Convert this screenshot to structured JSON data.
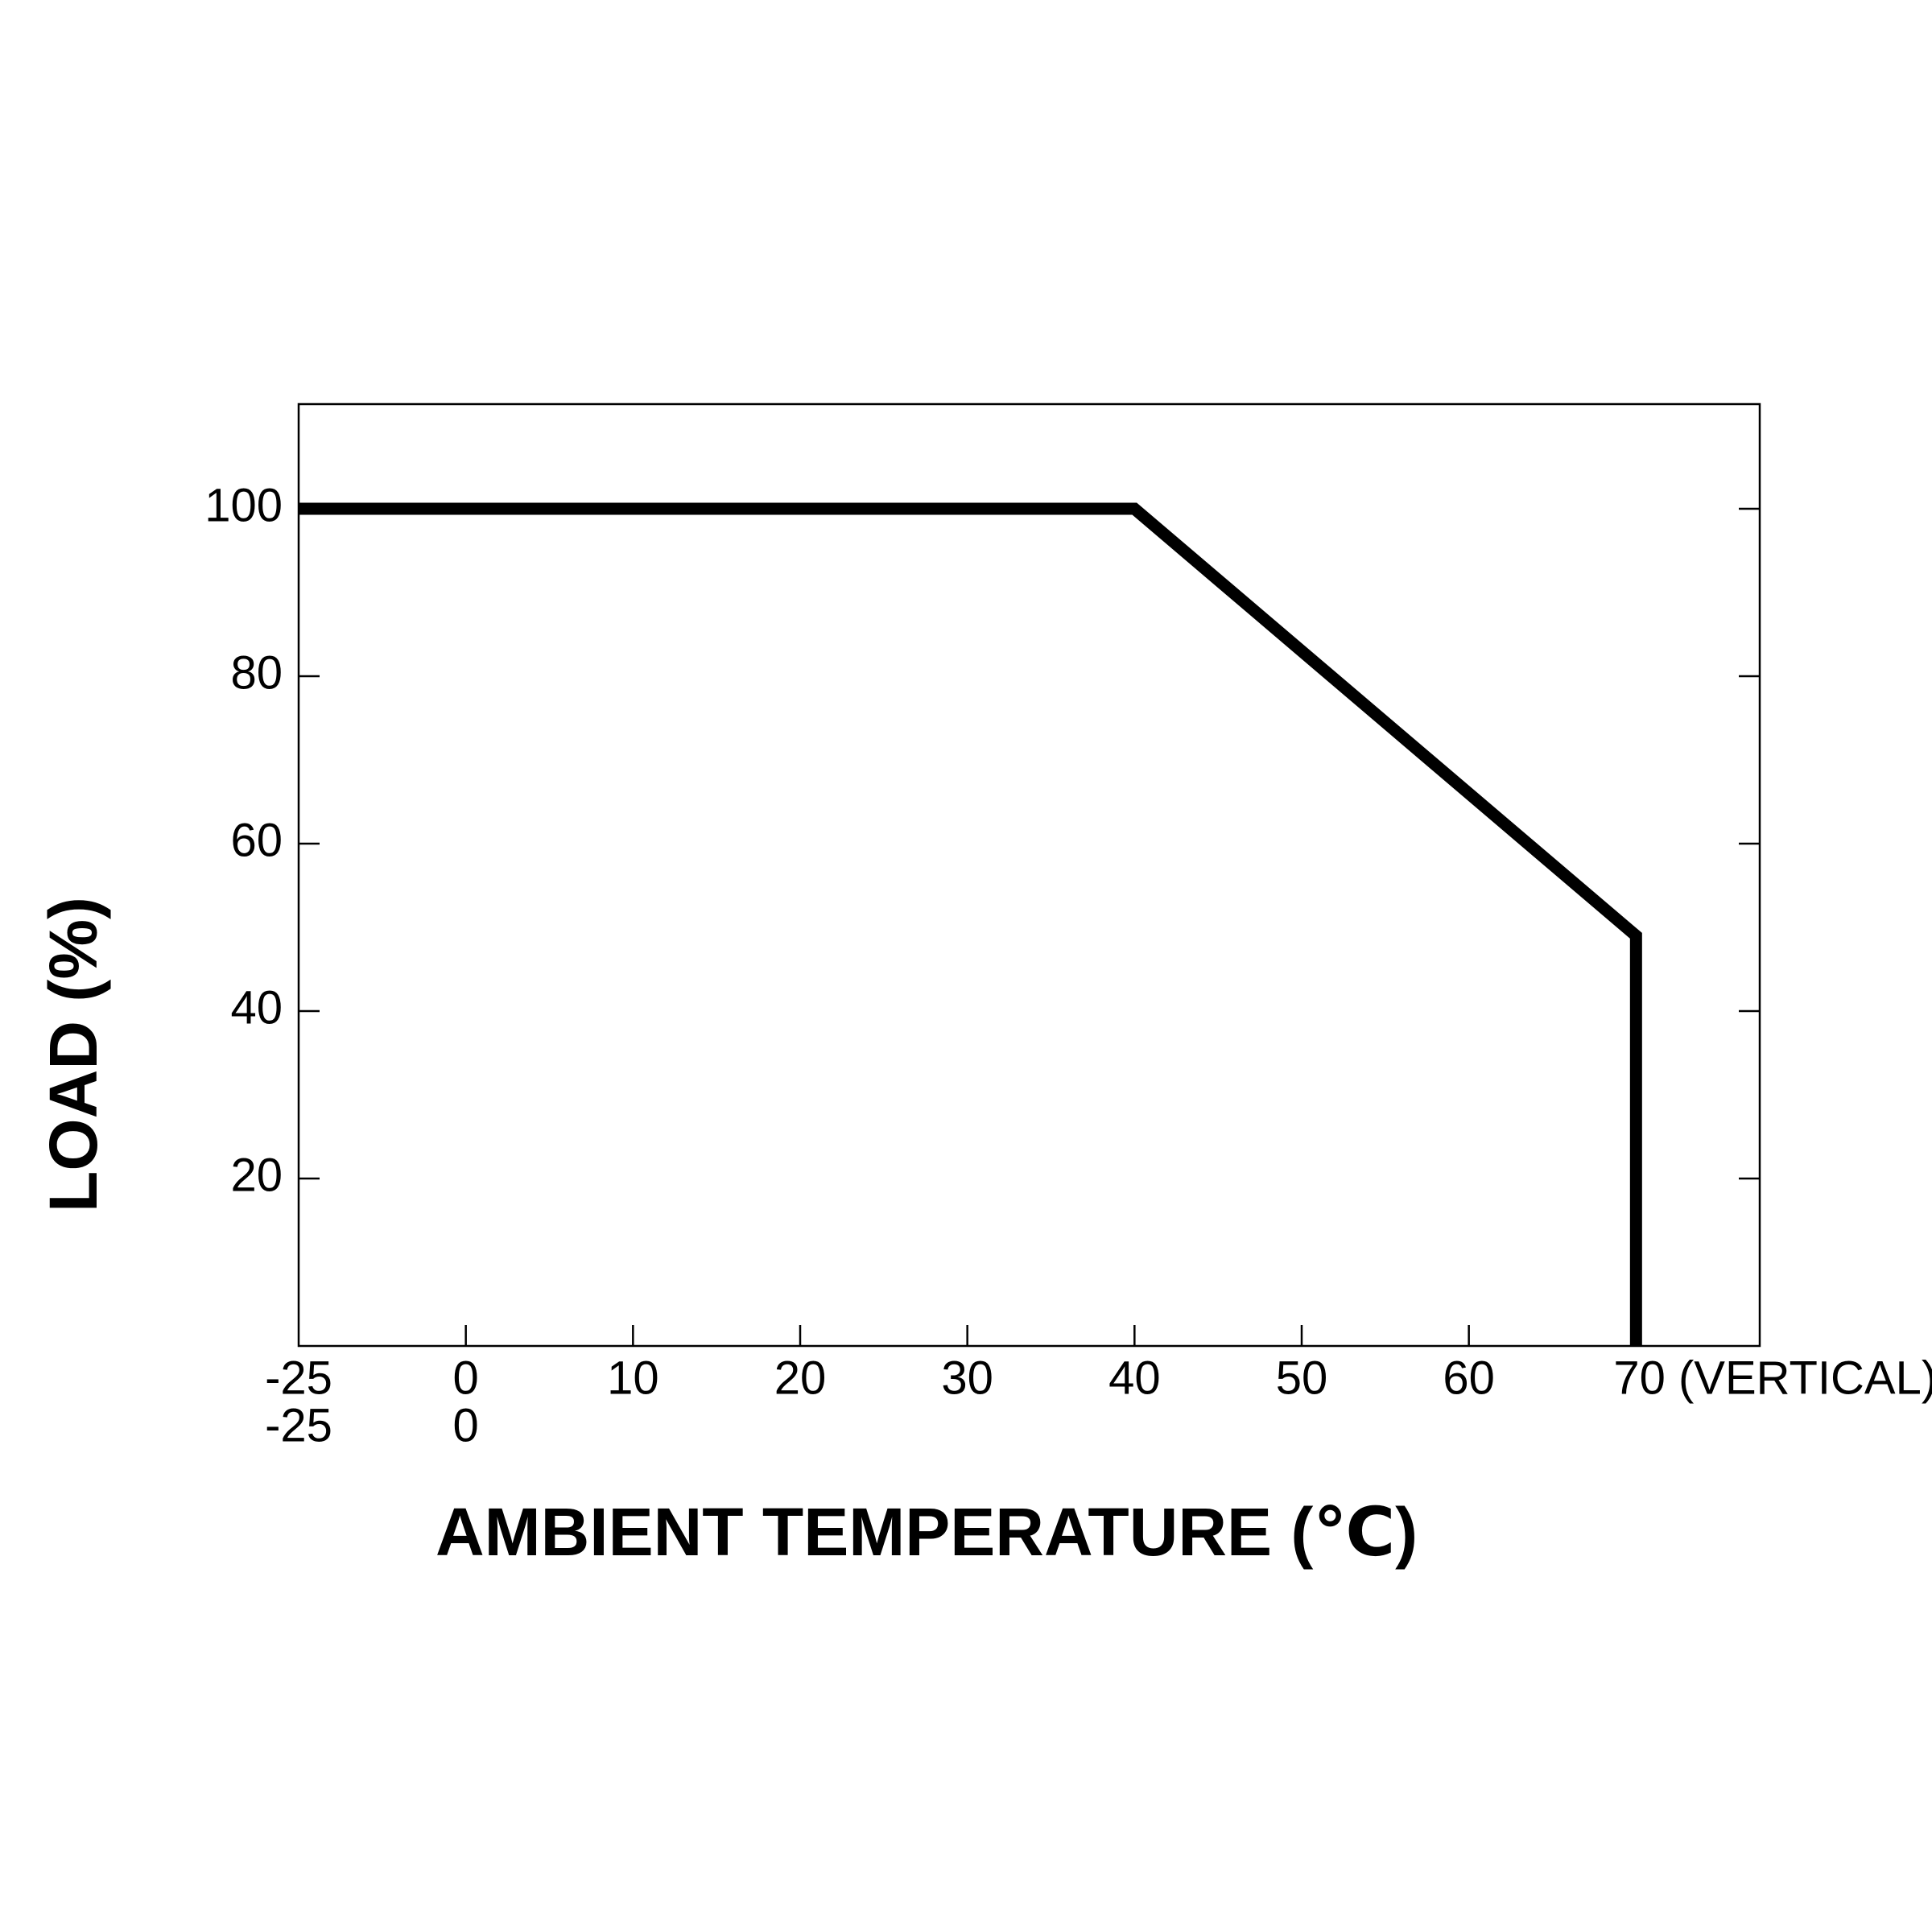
{
  "chart_data": {
    "type": "line",
    "x_label": "AMBIENT TEMPERATURE (℃)",
    "y_label": "LOAD (%)",
    "series": [
      {
        "color": "#000000",
        "x": [
          -25,
          40,
          70,
          70
        ],
        "values": [
          100,
          100,
          49,
          0
        ]
      }
    ],
    "xlim": [
      -25,
      77.4
    ],
    "xticks": [
      -25,
      0,
      10,
      20,
      30,
      40,
      50,
      60,
      {
        "value": 70,
        "label": "70 (VERTICAL)"
      }
    ],
    "xticks_row2": [
      -25,
      0
    ],
    "ylim": [
      0,
      112.5
    ],
    "yticks": [
      20,
      40,
      60,
      80,
      100
    ],
    "grid": false
  }
}
